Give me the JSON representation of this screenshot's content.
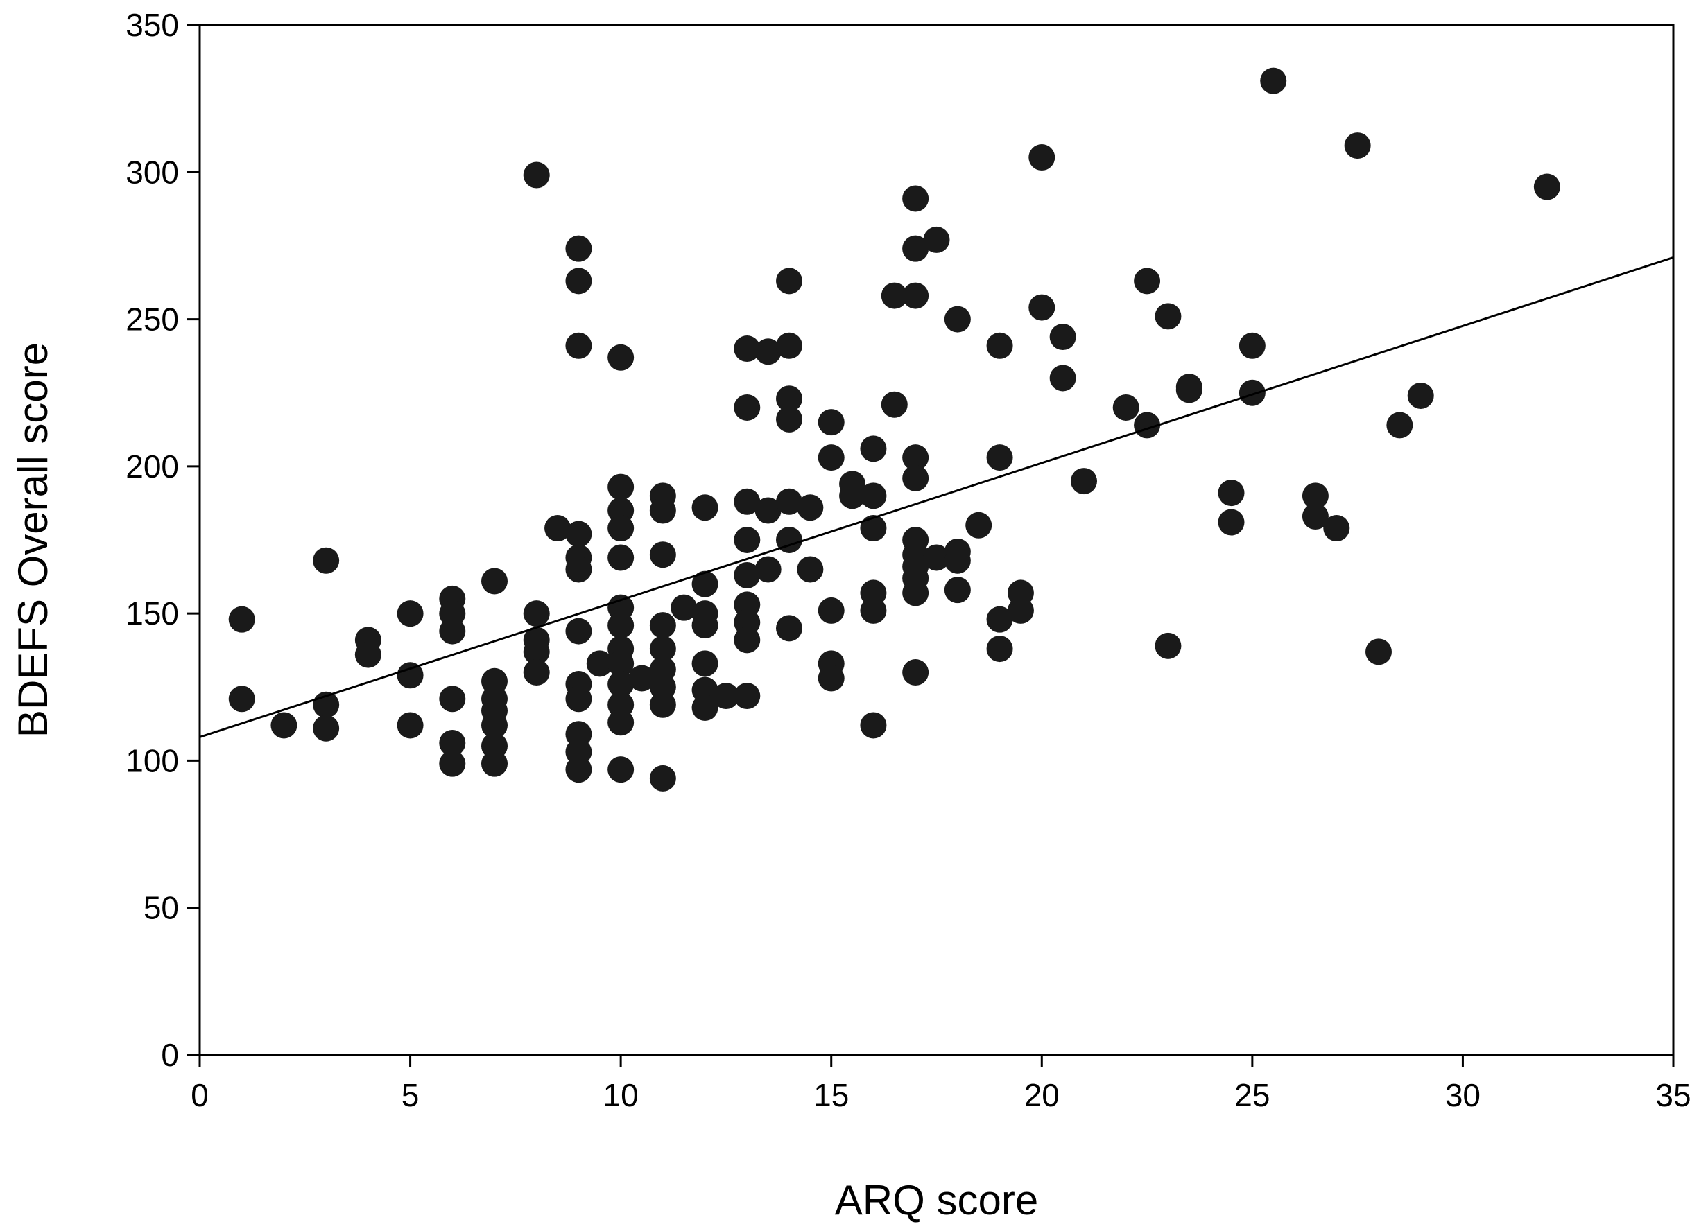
{
  "chart_data": {
    "type": "scatter",
    "title": "",
    "xlabel": "ARQ score",
    "ylabel": "BDEFS Overall score",
    "xlim": [
      0,
      35
    ],
    "ylim": [
      0,
      350
    ],
    "xticks": [
      0,
      5,
      10,
      15,
      20,
      25,
      30,
      35
    ],
    "yticks": [
      0,
      50,
      100,
      150,
      200,
      250,
      300,
      350
    ],
    "grid": false,
    "legend": "none",
    "colors": {
      "points": "#1a1a1a",
      "line": "#000000",
      "axes": "#000000"
    },
    "trendline": {
      "x": [
        0,
        35
      ],
      "y": [
        108,
        271
      ]
    },
    "points": [
      [
        1,
        148
      ],
      [
        1,
        121
      ],
      [
        2,
        112
      ],
      [
        3,
        168
      ],
      [
        3,
        119
      ],
      [
        3,
        111
      ],
      [
        4,
        141
      ],
      [
        4,
        136
      ],
      [
        5,
        150
      ],
      [
        5,
        129
      ],
      [
        5,
        112
      ],
      [
        6,
        155
      ],
      [
        6,
        150
      ],
      [
        6,
        144
      ],
      [
        6,
        121
      ],
      [
        6,
        106
      ],
      [
        6,
        99
      ],
      [
        7,
        161
      ],
      [
        7,
        127
      ],
      [
        7,
        121
      ],
      [
        7,
        117
      ],
      [
        7,
        112
      ],
      [
        7,
        105
      ],
      [
        7,
        99
      ],
      [
        8,
        299
      ],
      [
        8,
        150
      ],
      [
        8,
        141
      ],
      [
        8,
        137
      ],
      [
        8,
        130
      ],
      [
        8.5,
        179
      ],
      [
        9,
        274
      ],
      [
        9,
        263
      ],
      [
        9,
        241
      ],
      [
        9,
        177
      ],
      [
        9,
        169
      ],
      [
        9,
        165
      ],
      [
        9,
        144
      ],
      [
        9,
        126
      ],
      [
        9,
        121
      ],
      [
        9,
        109
      ],
      [
        9,
        103
      ],
      [
        9,
        97
      ],
      [
        9.5,
        133
      ],
      [
        10,
        237
      ],
      [
        10,
        193
      ],
      [
        10,
        185
      ],
      [
        10,
        179
      ],
      [
        10,
        169
      ],
      [
        10,
        152
      ],
      [
        10,
        146
      ],
      [
        10,
        138
      ],
      [
        10,
        133
      ],
      [
        10,
        126
      ],
      [
        10,
        119
      ],
      [
        10,
        113
      ],
      [
        10,
        97
      ],
      [
        10.5,
        128
      ],
      [
        11,
        190
      ],
      [
        11,
        185
      ],
      [
        11,
        170
      ],
      [
        11,
        146
      ],
      [
        11,
        138
      ],
      [
        11,
        131
      ],
      [
        11,
        125
      ],
      [
        11,
        119
      ],
      [
        11,
        94
      ],
      [
        11.5,
        152
      ],
      [
        12,
        186
      ],
      [
        12,
        160
      ],
      [
        12,
        150
      ],
      [
        12,
        146
      ],
      [
        12,
        133
      ],
      [
        12,
        124
      ],
      [
        12,
        118
      ],
      [
        12.5,
        122
      ],
      [
        13,
        240
      ],
      [
        13,
        220
      ],
      [
        13,
        188
      ],
      [
        13,
        175
      ],
      [
        13,
        163
      ],
      [
        13,
        153
      ],
      [
        13,
        147
      ],
      [
        13,
        141
      ],
      [
        13,
        122
      ],
      [
        13.5,
        239
      ],
      [
        13.5,
        185
      ],
      [
        13.5,
        165
      ],
      [
        14,
        263
      ],
      [
        14,
        241
      ],
      [
        14,
        223
      ],
      [
        14,
        216
      ],
      [
        14,
        188
      ],
      [
        14,
        175
      ],
      [
        14,
        145
      ],
      [
        14.5,
        186
      ],
      [
        14.5,
        165
      ],
      [
        15,
        215
      ],
      [
        15,
        203
      ],
      [
        15,
        151
      ],
      [
        15,
        133
      ],
      [
        15,
        128
      ],
      [
        15.5,
        194
      ],
      [
        15.5,
        190
      ],
      [
        16,
        206
      ],
      [
        16,
        190
      ],
      [
        16,
        179
      ],
      [
        16,
        157
      ],
      [
        16,
        151
      ],
      [
        16,
        112
      ],
      [
        16.5,
        258
      ],
      [
        16.5,
        221
      ],
      [
        17,
        291
      ],
      [
        17,
        274
      ],
      [
        17,
        258
      ],
      [
        17,
        203
      ],
      [
        17,
        196
      ],
      [
        17,
        175
      ],
      [
        17,
        170
      ],
      [
        17,
        166
      ],
      [
        17,
        162
      ],
      [
        17,
        157
      ],
      [
        17,
        130
      ],
      [
        17.5,
        277
      ],
      [
        17.5,
        169
      ],
      [
        18,
        250
      ],
      [
        18,
        171
      ],
      [
        18,
        168
      ],
      [
        18,
        158
      ],
      [
        18.5,
        180
      ],
      [
        19,
        241
      ],
      [
        19,
        203
      ],
      [
        19,
        148
      ],
      [
        19,
        138
      ],
      [
        19.5,
        157
      ],
      [
        19.5,
        151
      ],
      [
        20,
        305
      ],
      [
        20,
        254
      ],
      [
        20.5,
        244
      ],
      [
        20.5,
        230
      ],
      [
        21,
        195
      ],
      [
        22,
        220
      ],
      [
        22.5,
        263
      ],
      [
        22.5,
        214
      ],
      [
        23,
        251
      ],
      [
        23,
        139
      ],
      [
        23.5,
        227
      ],
      [
        23.5,
        226
      ],
      [
        24.5,
        191
      ],
      [
        24.5,
        181
      ],
      [
        25,
        241
      ],
      [
        25,
        225
      ],
      [
        25.5,
        331
      ],
      [
        26.5,
        190
      ],
      [
        26.5,
        183
      ],
      [
        27,
        179
      ],
      [
        27.5,
        309
      ],
      [
        28,
        137
      ],
      [
        28.5,
        214
      ],
      [
        29,
        224
      ],
      [
        32,
        295
      ]
    ]
  }
}
